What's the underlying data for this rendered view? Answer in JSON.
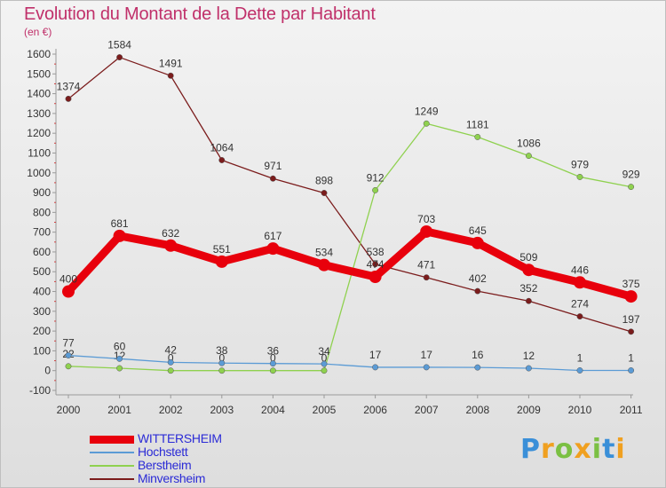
{
  "title": "Evolution du Montant de la Dette par Habitant",
  "subtitle": "(en €)",
  "logo": "Proxiti",
  "chart_data": {
    "type": "line",
    "x": [
      "2000",
      "2001",
      "2002",
      "2003",
      "2004",
      "2005",
      "2006",
      "2007",
      "2008",
      "2009",
      "2010",
      "2011"
    ],
    "ylim": [
      -100,
      1600
    ],
    "yticks": [
      -100,
      0,
      100,
      200,
      300,
      400,
      500,
      600,
      700,
      800,
      900,
      1000,
      1100,
      1200,
      1300,
      1400,
      1500,
      1600
    ],
    "grid": false,
    "legend_position": "bottom-left",
    "series": [
      {
        "name": "WITTERSHEIM",
        "color": "#e8000c",
        "values": [
          400,
          681,
          632,
          551,
          617,
          534,
          474,
          703,
          645,
          509,
          446,
          375
        ],
        "labels": [
          "400",
          "681",
          "632",
          "551",
          "617",
          "534",
          "474",
          "703",
          "645",
          "509",
          "446",
          "375"
        ]
      },
      {
        "name": "Hochstett",
        "color": "#5b9bd5",
        "values": [
          77,
          60,
          42,
          38,
          36,
          34,
          17,
          17,
          16,
          12,
          1,
          1
        ],
        "labels": [
          "77",
          "60",
          "42",
          "38",
          "36",
          "34",
          "17",
          "17",
          "16",
          "12",
          "1",
          "1"
        ]
      },
      {
        "name": "Berstheim",
        "color": "#8fd14f",
        "values": [
          22,
          12,
          0,
          0,
          0,
          0,
          912,
          1249,
          1181,
          1086,
          979,
          929
        ],
        "labels": [
          "22",
          "12",
          "0",
          "0",
          "0",
          "0",
          "912",
          "1249",
          "1181",
          "1086",
          "979",
          "929"
        ]
      },
      {
        "name": "Minversheim",
        "color": "#7b1c1c",
        "values": [
          1374,
          1584,
          1491,
          1064,
          971,
          898,
          538,
          471,
          402,
          352,
          274,
          197
        ],
        "labels": [
          "1374",
          "1584",
          "1491",
          "1064",
          "971",
          "898",
          "538",
          "471",
          "402",
          "352",
          "274",
          "197"
        ]
      }
    ]
  }
}
